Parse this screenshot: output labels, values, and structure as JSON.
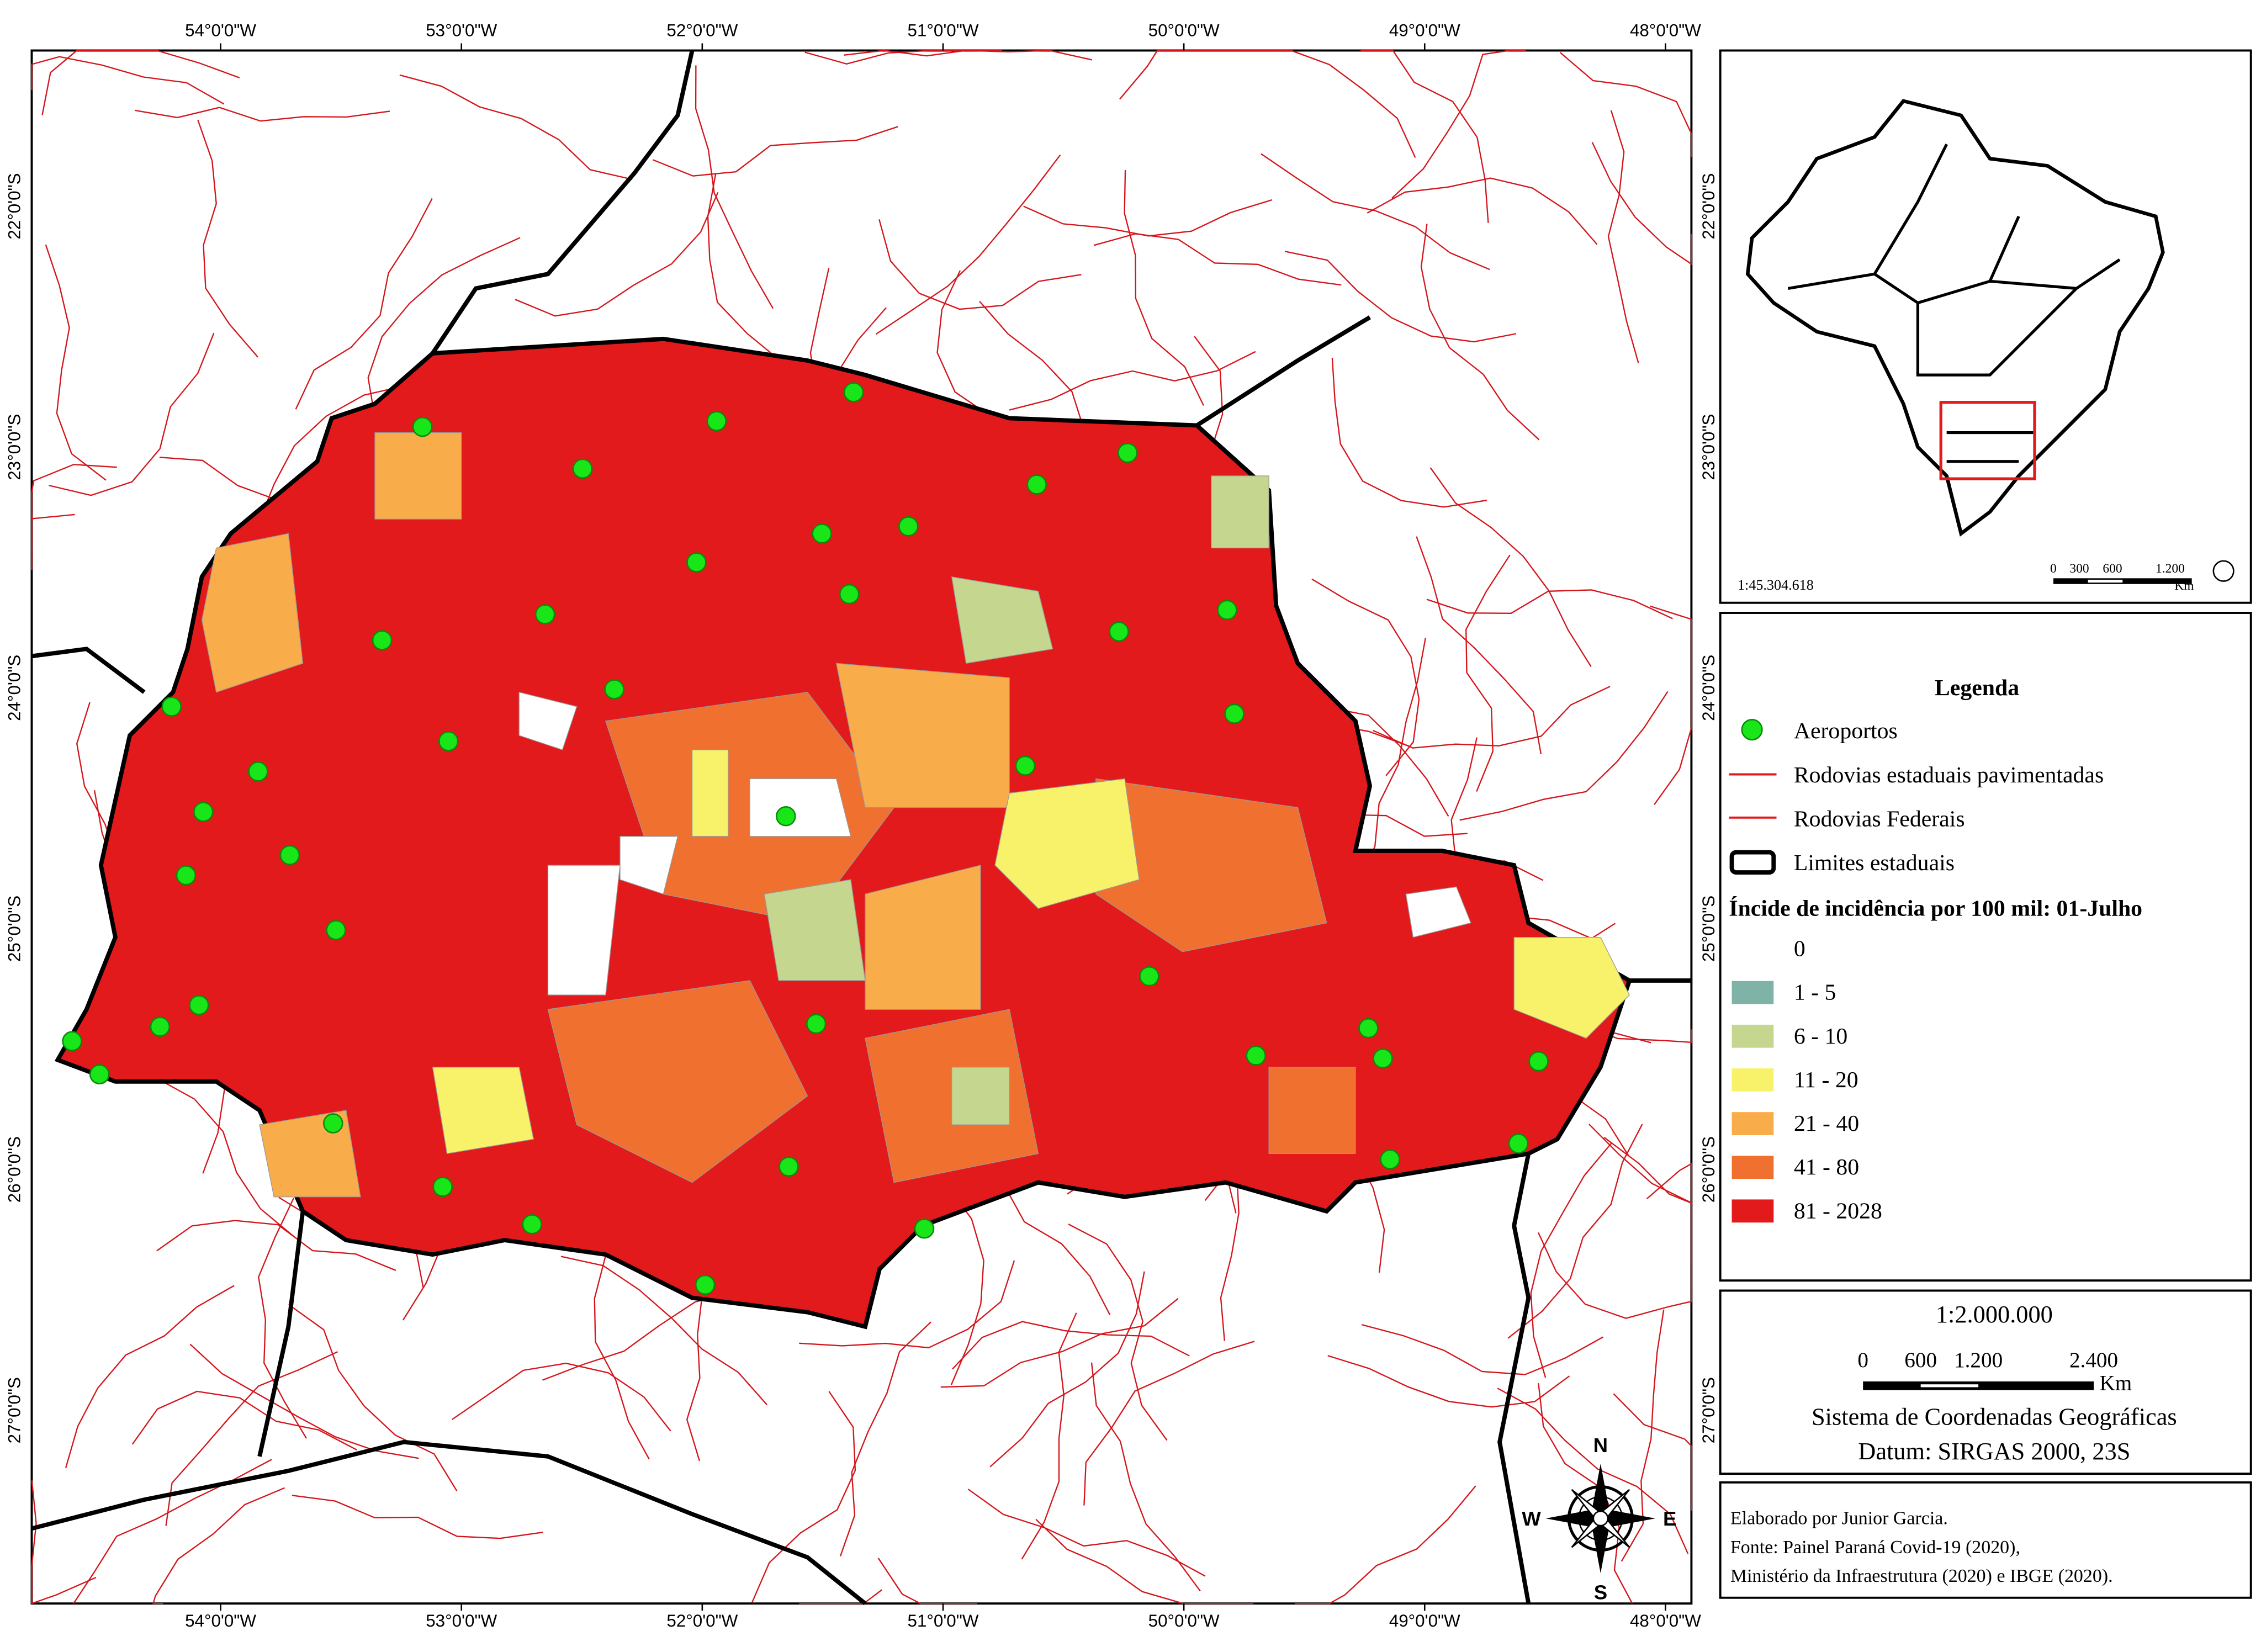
{
  "frame": {
    "top_labels": [
      "54°0'0\"W",
      "53°0'0\"W",
      "52°0'0\"W",
      "51°0'0\"W",
      "50°0'0\"W",
      "49°0'0\"W",
      "48°0'0\"W"
    ],
    "bottom_labels": [
      "54°0'0\"W",
      "53°0'0\"W",
      "52°0'0\"W",
      "51°0'0\"W",
      "50°0'0\"W",
      "49°0'0\"W",
      "48°0'0\"W"
    ],
    "left_labels": [
      "22°0'0\"S",
      "23°0'0\"S",
      "24°0'0\"S",
      "25°0'0\"S",
      "26°0'0\"S",
      "27°0'0\"S"
    ],
    "right_labels": [
      "22°0'0\"S",
      "23°0'0\"S",
      "24°0'0\"S",
      "25°0'0\"S",
      "26°0'0\"S",
      "27°0'0\"S"
    ]
  },
  "inset": {
    "scale": "1:45.304.618",
    "scalebar_labels": [
      "0",
      "300",
      "600",
      "1.200",
      "Km"
    ]
  },
  "legend": {
    "title": "Legenda",
    "items": [
      "Aeroportos",
      "Rodovias estaduais pavimentadas",
      "Rodovias Federais",
      "Limites estaduais"
    ],
    "classes_title": "Íncide de incidência por 100 mil: 01-Julho",
    "classes": [
      "0",
      "1 - 5",
      "6 - 10",
      "11 - 20",
      "21 - 40",
      "41 - 80",
      "81 - 2028"
    ]
  },
  "scale": {
    "ratio": "1:2.000.000",
    "scalebar_labels": [
      "0",
      "600",
      "1.200",
      "2.400",
      "Km"
    ],
    "crs": "Sistema de Coordenadas Geográficas",
    "datum": "Datum: SIRGAS 2000, 23S"
  },
  "credits": [
    "Elaborado por Junior Garcia.",
    "Fonte: Painel Paraná Covid-19 (2020),",
    "Ministério da Infraestrutura (2020) e IBGE (2020)."
  ],
  "compass": [
    "N",
    "E",
    "S",
    "W"
  ]
}
